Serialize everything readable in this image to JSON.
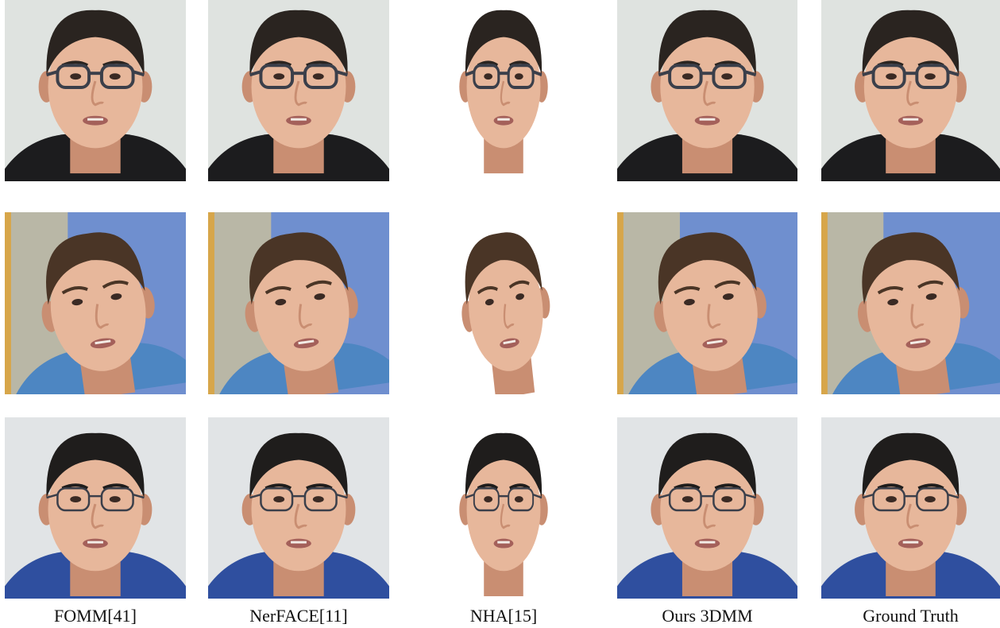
{
  "figure": {
    "columns": [
      {
        "label": "FOMM[41]"
      },
      {
        "label": "NerFACE[11]"
      },
      {
        "label": "NHA[15]"
      },
      {
        "label": "Ours 3DMM"
      },
      {
        "label": "Ground Truth"
      }
    ],
    "rows": [
      {
        "subject": "man-with-dark-glasses-hoodie",
        "background": "#dfe3e0",
        "shirt": "#1c1c1e",
        "hair": "#2a2420",
        "glasses": true
      },
      {
        "subject": "man-blue-shirt-blue-wall",
        "background": "#6f8fcf",
        "shirt": "#4d86c2",
        "hair": "#4a3526",
        "glasses": false
      },
      {
        "subject": "man-with-rimless-glasses",
        "background": "#e1e4e6",
        "shirt": "#2f4f9f",
        "hair": "#1f1d1c",
        "glasses": true
      }
    ],
    "colors": {
      "skin": "#e7b79b",
      "skin_shadow": "#c98e72",
      "glasses_frame": "#3b3f4a",
      "caption_text": "#111111"
    }
  }
}
